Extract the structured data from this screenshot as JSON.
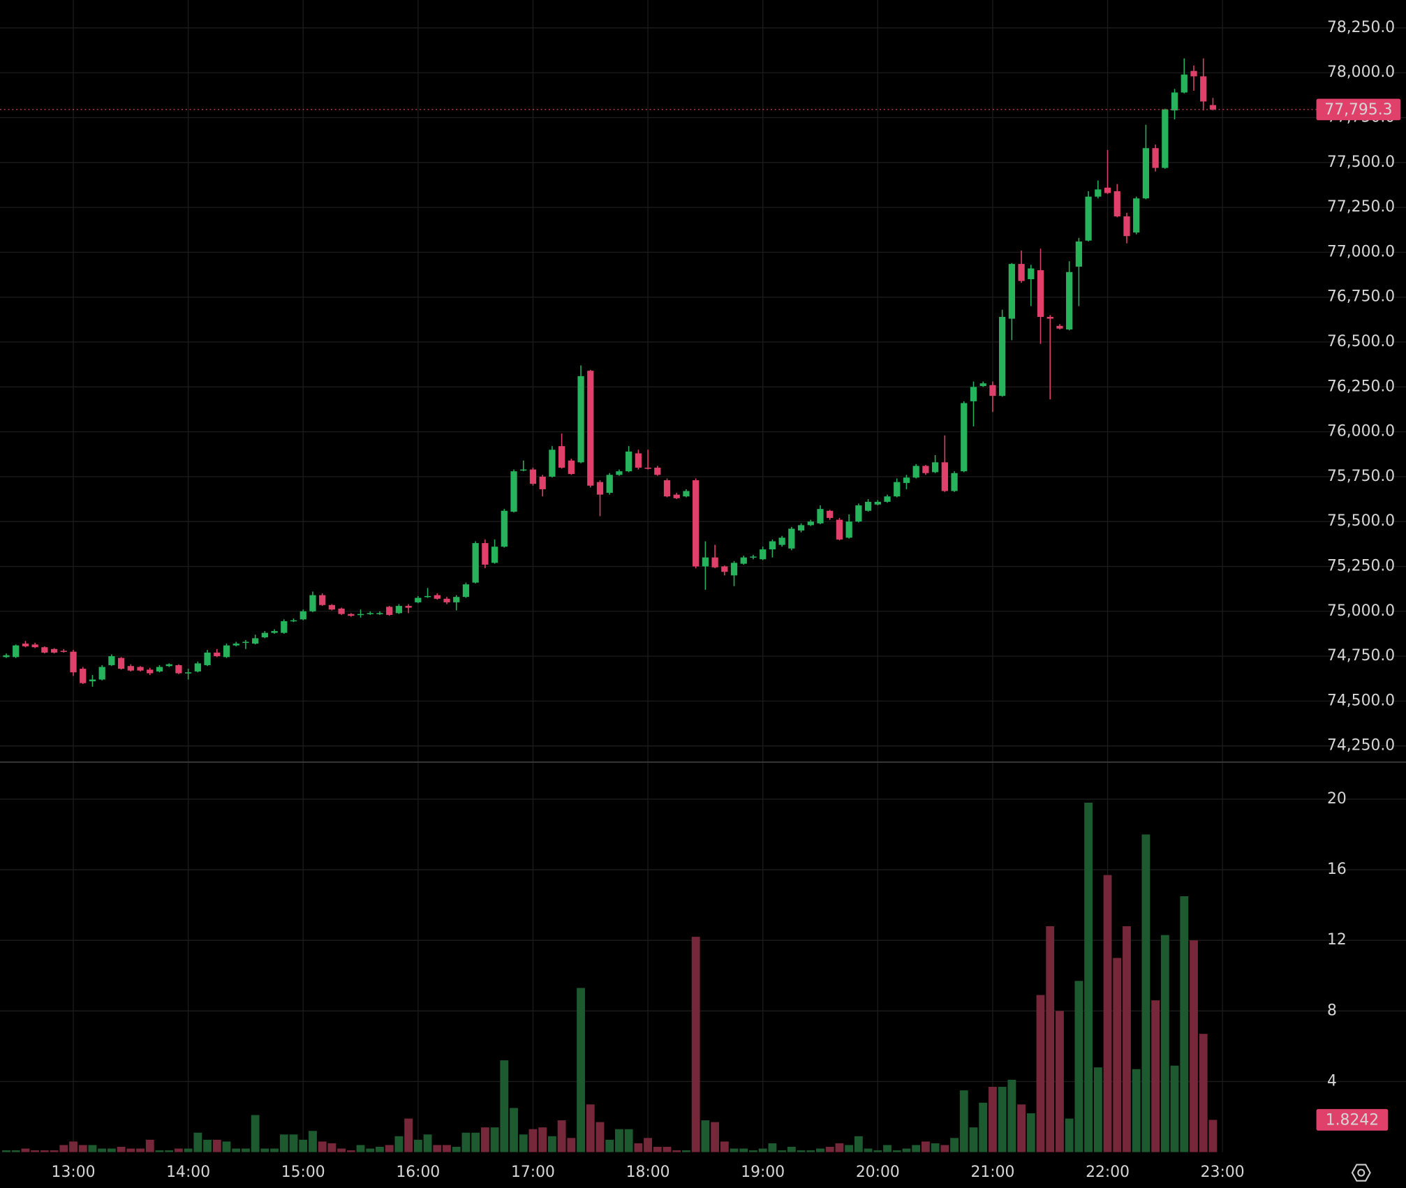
{
  "chart_data": {
    "type": "candlestick",
    "x": [
      "12:25",
      "12:30",
      "12:35",
      "12:40",
      "12:45",
      "12:50",
      "12:55",
      "13:00",
      "13:05",
      "13:10",
      "13:15",
      "13:20",
      "13:25",
      "13:30",
      "13:35",
      "13:40",
      "13:45",
      "13:50",
      "13:55",
      "14:00",
      "14:05",
      "14:10",
      "14:15",
      "14:20",
      "14:25",
      "14:30",
      "14:35",
      "14:40",
      "14:45",
      "14:50",
      "14:55",
      "15:00",
      "15:05",
      "15:10",
      "15:15",
      "15:20",
      "15:25",
      "15:30",
      "15:35",
      "15:40",
      "15:45",
      "15:50",
      "15:55",
      "16:00",
      "16:05",
      "16:10",
      "16:15",
      "16:20",
      "16:25",
      "16:30",
      "16:35",
      "16:40",
      "16:45",
      "16:50",
      "16:55",
      "17:00",
      "17:05",
      "17:10",
      "17:15",
      "17:20",
      "17:25",
      "17:30",
      "17:35",
      "17:40",
      "17:45",
      "17:50",
      "17:55",
      "18:00",
      "18:05",
      "18:10",
      "18:15",
      "18:20",
      "18:25",
      "18:30",
      "18:35",
      "18:40",
      "18:45",
      "18:50",
      "18:55",
      "19:00",
      "19:05",
      "19:10",
      "19:15",
      "19:20",
      "19:25",
      "19:30",
      "19:35",
      "19:40",
      "19:45",
      "19:50",
      "19:55",
      "20:00",
      "20:05",
      "20:10",
      "20:15",
      "20:20",
      "20:25",
      "20:30",
      "20:35",
      "20:40",
      "20:45",
      "20:50",
      "20:55",
      "21:00",
      "21:05",
      "21:10",
      "21:15",
      "21:20",
      "21:25",
      "21:30",
      "21:35",
      "21:40",
      "21:45",
      "21:50",
      "21:55",
      "22:00",
      "22:05",
      "22:10",
      "22:15",
      "22:20",
      "22:25",
      "22:30",
      "22:35",
      "22:40",
      "22:45",
      "22:50",
      "22:55"
    ],
    "open": [
      74745,
      74745,
      74820,
      74815,
      74800,
      74790,
      74780,
      74775,
      74680,
      74610,
      74620,
      74700,
      74740,
      74695,
      74690,
      74675,
      74665,
      74695,
      74700,
      74655,
      74665,
      74700,
      74770,
      74745,
      74810,
      74825,
      74820,
      74855,
      74880,
      74880,
      74945,
      74955,
      75000,
      75090,
      75035,
      75015,
      74985,
      74980,
      74985,
      74985,
      75025,
      74990,
      75030,
      75050,
      75080,
      75090,
      75070,
      75050,
      75080,
      75160,
      75380,
      75270,
      75360,
      75555,
      75785,
      75790,
      75750,
      75750,
      75920,
      75840,
      75830,
      76340,
      75720,
      75660,
      75760,
      75780,
      75880,
      75800,
      75800,
      75730,
      75650,
      75640,
      75730,
      75250,
      75300,
      75250,
      75200,
      75265,
      75300,
      75290,
      75345,
      75370,
      75350,
      75450,
      75480,
      75490,
      75560,
      75510,
      75410,
      75500,
      75560,
      75595,
      75610,
      75640,
      75715,
      75745,
      75810,
      75775,
      75830,
      75670,
      75780,
      76170,
      76255,
      76260,
      76200,
      76630,
      76935,
      76850,
      76900,
      76640,
      76590,
      76570,
      76920,
      77065,
      77310,
      77360,
      77340,
      77200,
      77110,
      77300,
      77580,
      77470,
      77790,
      77890,
      78010,
      77980,
      77820
    ],
    "high": [
      74765,
      74815,
      74835,
      74825,
      74805,
      74795,
      74790,
      74785,
      74690,
      74645,
      74700,
      74760,
      74745,
      74705,
      74695,
      74685,
      74700,
      74710,
      74705,
      74680,
      74720,
      74785,
      74790,
      74820,
      74830,
      74840,
      74870,
      74890,
      74900,
      74955,
      74960,
      75010,
      75110,
      75100,
      75040,
      75020,
      74990,
      75010,
      75000,
      75000,
      75030,
      75040,
      75040,
      75085,
      75130,
      75100,
      75080,
      75090,
      75160,
      75390,
      75400,
      75400,
      75570,
      75790,
      75840,
      75800,
      75760,
      75920,
      75990,
      75850,
      76370,
      76345,
      75730,
      75770,
      75790,
      75920,
      75900,
      75900,
      75810,
      75740,
      75660,
      75680,
      75740,
      75390,
      75370,
      75255,
      75280,
      75310,
      75315,
      75360,
      75400,
      75420,
      75470,
      75490,
      75510,
      75590,
      75565,
      75520,
      75540,
      75600,
      75625,
      75620,
      75650,
      75740,
      75760,
      75820,
      75815,
      75870,
      75980,
      75780,
      76170,
      76280,
      76280,
      76280,
      76680,
      76940,
      77010,
      76930,
      77020,
      76650,
      76600,
      76950,
      77080,
      77340,
      77400,
      77570,
      77380,
      77220,
      77310,
      77710,
      77600,
      77800,
      77910,
      78080,
      78040,
      78080,
      77860
    ],
    "low": [
      74740,
      74740,
      74800,
      74795,
      74765,
      74765,
      74770,
      74640,
      74595,
      74580,
      74615,
      74695,
      74675,
      74665,
      74665,
      74645,
      74660,
      74690,
      74650,
      74620,
      74660,
      74695,
      74745,
      74740,
      74805,
      74790,
      74815,
      74850,
      74875,
      74875,
      74940,
      74950,
      74995,
      75030,
      75005,
      74980,
      74970,
      74965,
      74980,
      74980,
      74975,
      74985,
      74990,
      75045,
      75075,
      75065,
      75040,
      75005,
      75075,
      75155,
      75240,
      75265,
      75355,
      75550,
      75780,
      75700,
      75640,
      75745,
      75795,
      75760,
      75825,
      75690,
      75530,
      75650,
      75755,
      75775,
      75790,
      75790,
      75755,
      75635,
      75625,
      75635,
      75240,
      75120,
      75240,
      75200,
      75140,
      75260,
      75290,
      75285,
      75300,
      75360,
      75340,
      75440,
      75475,
      75485,
      75510,
      75395,
      75405,
      75495,
      75555,
      75590,
      75605,
      75635,
      75680,
      75740,
      75760,
      75770,
      75665,
      75665,
      75775,
      76030,
      76250,
      76110,
      76195,
      76510,
      76830,
      76700,
      76490,
      76180,
      76570,
      76565,
      76700,
      77060,
      77300,
      77325,
      77195,
      77050,
      77100,
      77295,
      77450,
      77465,
      77740,
      77885,
      77900,
      77790,
      77790
    ],
    "close": [
      74755,
      74810,
      74805,
      74800,
      74770,
      74770,
      74775,
      74660,
      74600,
      74620,
      74690,
      74750,
      74680,
      74670,
      74670,
      74655,
      74690,
      74705,
      74655,
      74660,
      74710,
      74770,
      74750,
      74810,
      74820,
      74830,
      74850,
      74880,
      74890,
      74945,
      74950,
      75000,
      75090,
      75035,
      75010,
      74985,
      74975,
      74985,
      74990,
      74990,
      74980,
      75030,
      75020,
      75075,
      75085,
      75070,
      75050,
      75080,
      75150,
      75380,
      75260,
      75360,
      75560,
      75780,
      75790,
      75710,
      75680,
      75900,
      75800,
      75765,
      76310,
      75700,
      75650,
      75760,
      75780,
      75890,
      75800,
      75795,
      75760,
      75640,
      75630,
      75670,
      75250,
      75300,
      75245,
      75220,
      75270,
      75300,
      75305,
      75345,
      75390,
      75410,
      75460,
      75480,
      75500,
      75570,
      75520,
      75400,
      75500,
      75590,
      75610,
      75610,
      75640,
      75720,
      75745,
      75810,
      75770,
      75830,
      75670,
      75770,
      76160,
      76250,
      76270,
      76200,
      76640,
      76935,
      76840,
      76910,
      76640,
      76630,
      76575,
      76890,
      77060,
      77310,
      77350,
      77330,
      77200,
      77090,
      77300,
      77580,
      77470,
      77795,
      77890,
      77990,
      77980,
      77840,
      77795.3
    ],
    "volume": [
      0.1,
      0.1,
      0.2,
      0.1,
      0.1,
      0.1,
      0.4,
      0.6,
      0.4,
      0.4,
      0.2,
      0.2,
      0.3,
      0.2,
      0.2,
      0.7,
      0.1,
      0.1,
      0.2,
      0.2,
      1.1,
      0.7,
      0.7,
      0.6,
      0.2,
      0.2,
      2.1,
      0.2,
      0.2,
      1.0,
      1.0,
      0.7,
      1.2,
      0.6,
      0.5,
      0.2,
      0.1,
      0.4,
      0.2,
      0.3,
      0.4,
      0.9,
      1.9,
      0.7,
      1.0,
      0.4,
      0.4,
      0.3,
      1.1,
      1.1,
      1.4,
      1.4,
      5.2,
      2.5,
      1.0,
      1.3,
      1.4,
      0.9,
      1.8,
      0.8,
      9.3,
      2.7,
      1.7,
      0.7,
      1.3,
      1.3,
      0.5,
      0.8,
      0.3,
      0.3,
      0.1,
      0.1,
      12.2,
      1.8,
      1.7,
      0.6,
      0.2,
      0.2,
      0.1,
      0.2,
      0.5,
      0.1,
      0.3,
      0.1,
      0.1,
      0.2,
      0.3,
      0.5,
      0.4,
      0.9,
      0.2,
      0.1,
      0.4,
      0.1,
      0.2,
      0.4,
      0.6,
      0.5,
      0.4,
      0.8,
      3.5,
      1.4,
      2.8,
      3.7,
      3.7,
      4.1,
      2.7,
      2.2,
      8.9,
      12.8,
      8.0,
      1.9,
      9.7,
      19.8,
      4.8,
      15.7,
      11.0,
      12.8,
      4.7,
      18.0,
      8.6,
      12.3,
      4.9,
      14.5,
      12.0,
      6.7,
      1.8242
    ],
    "ylim": [
      74160,
      78405
    ],
    "yticks": [
      {
        "value": 74250,
        "label": "74,250.0"
      },
      {
        "value": 74500,
        "label": "74,500.0"
      },
      {
        "value": 74750,
        "label": "74,750.0"
      },
      {
        "value": 75000,
        "label": "75,000.0"
      },
      {
        "value": 75250,
        "label": "75,250.0"
      },
      {
        "value": 75500,
        "label": "75,500.0"
      },
      {
        "value": 75750,
        "label": "75,750.0"
      },
      {
        "value": 76000,
        "label": "76,000.0"
      },
      {
        "value": 76250,
        "label": "76,250.0"
      },
      {
        "value": 76500,
        "label": "76,500.0"
      },
      {
        "value": 76750,
        "label": "76,750.0"
      },
      {
        "value": 77000,
        "label": "77,000.0"
      },
      {
        "value": 77250,
        "label": "77,250.0"
      },
      {
        "value": 77500,
        "label": "77,500.0"
      },
      {
        "value": 77750,
        "label": "77,750.0"
      },
      {
        "value": 78000,
        "label": "78,000.0"
      },
      {
        "value": 78250,
        "label": "78,250.0"
      }
    ],
    "y2lim": [
      0,
      22.1
    ],
    "y2ticks": [
      4,
      8,
      12,
      16,
      20
    ],
    "xticks": [
      "13:00",
      "14:00",
      "15:00",
      "16:00",
      "17:00",
      "18:00",
      "19:00",
      "20:00",
      "21:00",
      "22:00",
      "23:00"
    ],
    "grid": true,
    "up_color": "#26b35b",
    "down_color": "#e0416a",
    "volume_up_color": "#1d5a30",
    "volume_down_color": "#76283a",
    "last_close_label": "77,795.3",
    "last_volume_label": "1.8242"
  }
}
